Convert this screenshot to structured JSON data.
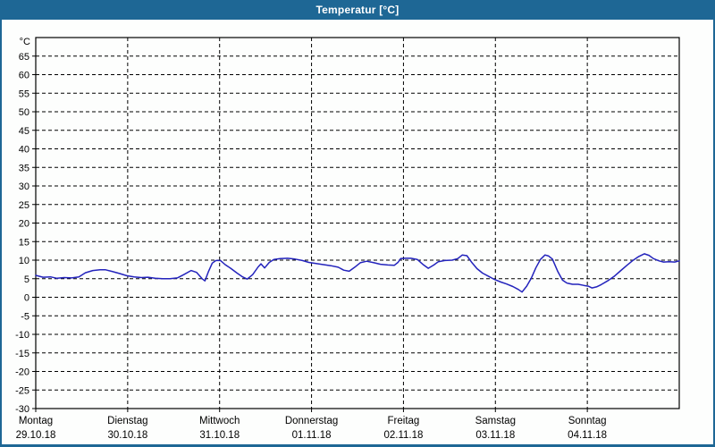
{
  "window": {
    "title": "Temperatur [°C]",
    "frame_color": "#1e6795",
    "background_color": "#fdfefd"
  },
  "chart_data": {
    "type": "line",
    "title": "Temperatur [°C]",
    "y_unit_label": "°C",
    "ylim": [
      -30,
      70
    ],
    "y_ticks": [
      65,
      60,
      55,
      50,
      45,
      40,
      35,
      30,
      25,
      20,
      15,
      10,
      5,
      0,
      -5,
      -10,
      -15,
      -20,
      -25,
      -30
    ],
    "grid": "dashed",
    "legend": "none",
    "days": [
      {
        "name": "Montag",
        "date": "29.10.18"
      },
      {
        "name": "Dienstag",
        "date": "30.10.18"
      },
      {
        "name": "Mittwoch",
        "date": "31.10.18"
      },
      {
        "name": "Donnerstag",
        "date": "01.11.18"
      },
      {
        "name": "Freitag",
        "date": "02.11.18"
      },
      {
        "name": "Samstag",
        "date": "03.11.18"
      },
      {
        "name": "Sonntag",
        "date": "04.11.18"
      }
    ],
    "series": [
      {
        "name": "Temperatur",
        "color": "#2323bc",
        "x_unit": "days_from_start",
        "points": [
          [
            0.0,
            5.9
          ],
          [
            0.08,
            5.4
          ],
          [
            0.16,
            5.5
          ],
          [
            0.23,
            5.1
          ],
          [
            0.31,
            5.3
          ],
          [
            0.39,
            5.2
          ],
          [
            0.47,
            5.5
          ],
          [
            0.54,
            6.6
          ],
          [
            0.62,
            7.2
          ],
          [
            0.7,
            7.4
          ],
          [
            0.76,
            7.4
          ],
          [
            0.84,
            6.9
          ],
          [
            0.91,
            6.4
          ],
          [
            0.99,
            5.8
          ],
          [
            1.07,
            5.5
          ],
          [
            1.15,
            5.3
          ],
          [
            1.22,
            5.4
          ],
          [
            1.3,
            5.1
          ],
          [
            1.38,
            5.0
          ],
          [
            1.46,
            5.0
          ],
          [
            1.54,
            5.2
          ],
          [
            1.61,
            6.1
          ],
          [
            1.69,
            7.2
          ],
          [
            1.75,
            6.7
          ],
          [
            1.81,
            5.0
          ],
          [
            1.84,
            4.4
          ],
          [
            1.88,
            7.0
          ],
          [
            1.92,
            9.2
          ],
          [
            1.96,
            9.9
          ],
          [
            2.01,
            9.9
          ],
          [
            2.06,
            8.8
          ],
          [
            2.12,
            7.8
          ],
          [
            2.19,
            6.5
          ],
          [
            2.25,
            5.5
          ],
          [
            2.3,
            4.9
          ],
          [
            2.36,
            6.1
          ],
          [
            2.42,
            8.2
          ],
          [
            2.45,
            9.0
          ],
          [
            2.49,
            7.9
          ],
          [
            2.54,
            9.4
          ],
          [
            2.59,
            10.2
          ],
          [
            2.66,
            10.4
          ],
          [
            2.74,
            10.5
          ],
          [
            2.82,
            10.3
          ],
          [
            2.9,
            9.9
          ],
          [
            2.97,
            9.4
          ],
          [
            3.05,
            9.1
          ],
          [
            3.13,
            8.8
          ],
          [
            3.21,
            8.5
          ],
          [
            3.29,
            8.1
          ],
          [
            3.35,
            7.3
          ],
          [
            3.41,
            7.0
          ],
          [
            3.47,
            8.1
          ],
          [
            3.53,
            9.3
          ],
          [
            3.6,
            9.7
          ],
          [
            3.68,
            9.3
          ],
          [
            3.75,
            8.9
          ],
          [
            3.83,
            8.7
          ],
          [
            3.9,
            8.6
          ],
          [
            3.94,
            9.4
          ],
          [
            3.97,
            10.4
          ],
          [
            4.02,
            10.5
          ],
          [
            4.08,
            10.5
          ],
          [
            4.15,
            10.2
          ],
          [
            4.21,
            8.9
          ],
          [
            4.27,
            7.8
          ],
          [
            4.33,
            8.7
          ],
          [
            4.38,
            9.6
          ],
          [
            4.45,
            9.9
          ],
          [
            4.53,
            10.0
          ],
          [
            4.59,
            10.4
          ],
          [
            4.64,
            11.4
          ],
          [
            4.69,
            11.2
          ],
          [
            4.74,
            9.5
          ],
          [
            4.8,
            7.7
          ],
          [
            4.86,
            6.5
          ],
          [
            4.93,
            5.6
          ],
          [
            4.99,
            4.8
          ],
          [
            5.06,
            4.1
          ],
          [
            5.12,
            3.6
          ],
          [
            5.19,
            2.9
          ],
          [
            5.25,
            2.1
          ],
          [
            5.29,
            1.4
          ],
          [
            5.34,
            3.0
          ],
          [
            5.39,
            5.1
          ],
          [
            5.44,
            7.9
          ],
          [
            5.49,
            10.2
          ],
          [
            5.54,
            11.4
          ],
          [
            5.58,
            11.1
          ],
          [
            5.62,
            10.3
          ],
          [
            5.68,
            6.9
          ],
          [
            5.73,
            4.6
          ],
          [
            5.78,
            3.8
          ],
          [
            5.84,
            3.5
          ],
          [
            5.9,
            3.5
          ],
          [
            5.96,
            3.2
          ],
          [
            6.01,
            3.0
          ],
          [
            6.05,
            2.5
          ],
          [
            6.1,
            2.8
          ],
          [
            6.15,
            3.4
          ],
          [
            6.22,
            4.4
          ],
          [
            6.29,
            5.6
          ],
          [
            6.36,
            7.1
          ],
          [
            6.43,
            8.6
          ],
          [
            6.49,
            9.8
          ],
          [
            6.56,
            11.0
          ],
          [
            6.62,
            11.7
          ],
          [
            6.67,
            11.3
          ],
          [
            6.72,
            10.4
          ],
          [
            6.78,
            9.8
          ],
          [
            6.83,
            9.5
          ],
          [
            6.89,
            9.6
          ],
          [
            6.95,
            9.5
          ],
          [
            7.0,
            9.8
          ]
        ]
      }
    ]
  }
}
